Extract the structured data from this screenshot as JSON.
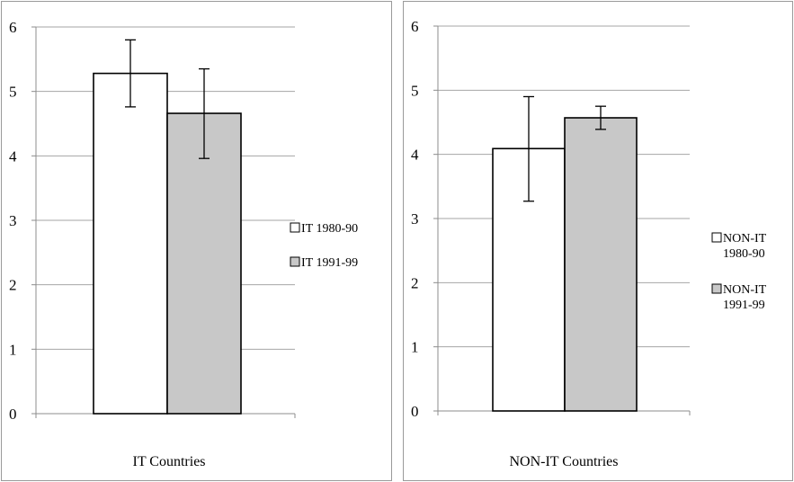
{
  "chart_data": [
    {
      "type": "bar",
      "title": "",
      "xlabel": "IT Countries",
      "ylabel": "",
      "ylim": [
        0,
        6
      ],
      "yticks": [
        0,
        1,
        2,
        3,
        4,
        5,
        6
      ],
      "grid": true,
      "legend_position": "right",
      "series": [
        {
          "name": "IT 1980-90",
          "label_lines": [
            "IT 1980-90"
          ],
          "value": 5.28,
          "error_low": 4.76,
          "error_high": 5.8,
          "color": "#ffffff"
        },
        {
          "name": "IT 1991-99",
          "label_lines": [
            "IT 1991-99"
          ],
          "value": 4.66,
          "error_low": 3.96,
          "error_high": 5.35,
          "color": "#c8c8c8"
        }
      ]
    },
    {
      "type": "bar",
      "title": "",
      "xlabel": "NON-IT Countries",
      "ylabel": "",
      "ylim": [
        0,
        6
      ],
      "yticks": [
        0,
        1,
        2,
        3,
        4,
        5,
        6
      ],
      "grid": true,
      "legend_position": "right",
      "series": [
        {
          "name": "NON-IT 1980-90",
          "label_lines": [
            "NON-IT",
            "1980-90"
          ],
          "value": 4.09,
          "error_low": 3.27,
          "error_high": 4.9,
          "color": "#ffffff"
        },
        {
          "name": "NON-IT 1991-99",
          "label_lines": [
            "NON-IT",
            "1991-99"
          ],
          "value": 4.57,
          "error_low": 4.39,
          "error_high": 4.75,
          "color": "#c8c8c8"
        }
      ]
    }
  ]
}
